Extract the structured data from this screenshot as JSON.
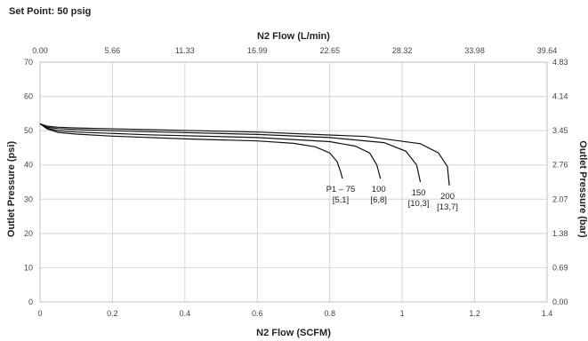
{
  "chart_data": {
    "type": "line",
    "title": "Set Point: 50 psig",
    "xlabel": "N2 Flow (SCFM)",
    "ylabel": "Outlet Pressure (psi)",
    "x2label": "N2 Flow (L/min)",
    "y2label": "Outlet Pressure (bar)",
    "xlim": [
      0,
      1.4
    ],
    "ylim": [
      0,
      70
    ],
    "grid": true,
    "x_ticks": [
      "0",
      "0.2",
      "0.4",
      "0.6",
      "0.8",
      "1",
      "1.2",
      "1.4"
    ],
    "y_ticks": [
      "0",
      "10",
      "20",
      "30",
      "40",
      "50",
      "60",
      "70"
    ],
    "x2_ticks": [
      "0.00",
      "5.66",
      "11.33",
      "16.99",
      "22.65",
      "28.32",
      "33.98",
      "39.64"
    ],
    "y2_ticks": [
      "0.00",
      "0.69",
      "1.38",
      "2.07",
      "2.76",
      "3.45",
      "4.14",
      "4.83"
    ],
    "series": [
      {
        "label_lines": [
          "P1 – 75",
          "[5,1]"
        ],
        "x": [
          0,
          0.02,
          0.05,
          0.1,
          0.2,
          0.4,
          0.6,
          0.7,
          0.76,
          0.8,
          0.82,
          0.83,
          0.835
        ],
        "y": [
          52,
          50.5,
          49.5,
          49,
          48.4,
          47.6,
          47,
          46.3,
          45.3,
          43.5,
          41,
          38,
          36
        ]
      },
      {
        "label_lines": [
          "100",
          "[6,8]"
        ],
        "x": [
          0,
          0.02,
          0.05,
          0.1,
          0.3,
          0.6,
          0.8,
          0.87,
          0.91,
          0.93,
          0.94
        ],
        "y": [
          52,
          50.7,
          50,
          49.6,
          48.8,
          48,
          46.8,
          45.5,
          43.5,
          40,
          36
        ]
      },
      {
        "label_lines": [
          "150",
          "[10,3]"
        ],
        "x": [
          0,
          0.02,
          0.05,
          0.1,
          0.3,
          0.6,
          0.8,
          0.95,
          1.01,
          1.04,
          1.05
        ],
        "y": [
          52,
          51,
          50.6,
          50.3,
          49.7,
          48.9,
          48,
          46.5,
          44,
          40,
          35
        ]
      },
      {
        "label_lines": [
          "200",
          "[13,7]"
        ],
        "x": [
          0,
          0.02,
          0.05,
          0.1,
          0.3,
          0.6,
          0.9,
          1.05,
          1.1,
          1.125,
          1.13
        ],
        "y": [
          52,
          51.3,
          51,
          50.8,
          50.3,
          49.6,
          48.3,
          46.2,
          43.5,
          39.5,
          34
        ]
      }
    ]
  }
}
